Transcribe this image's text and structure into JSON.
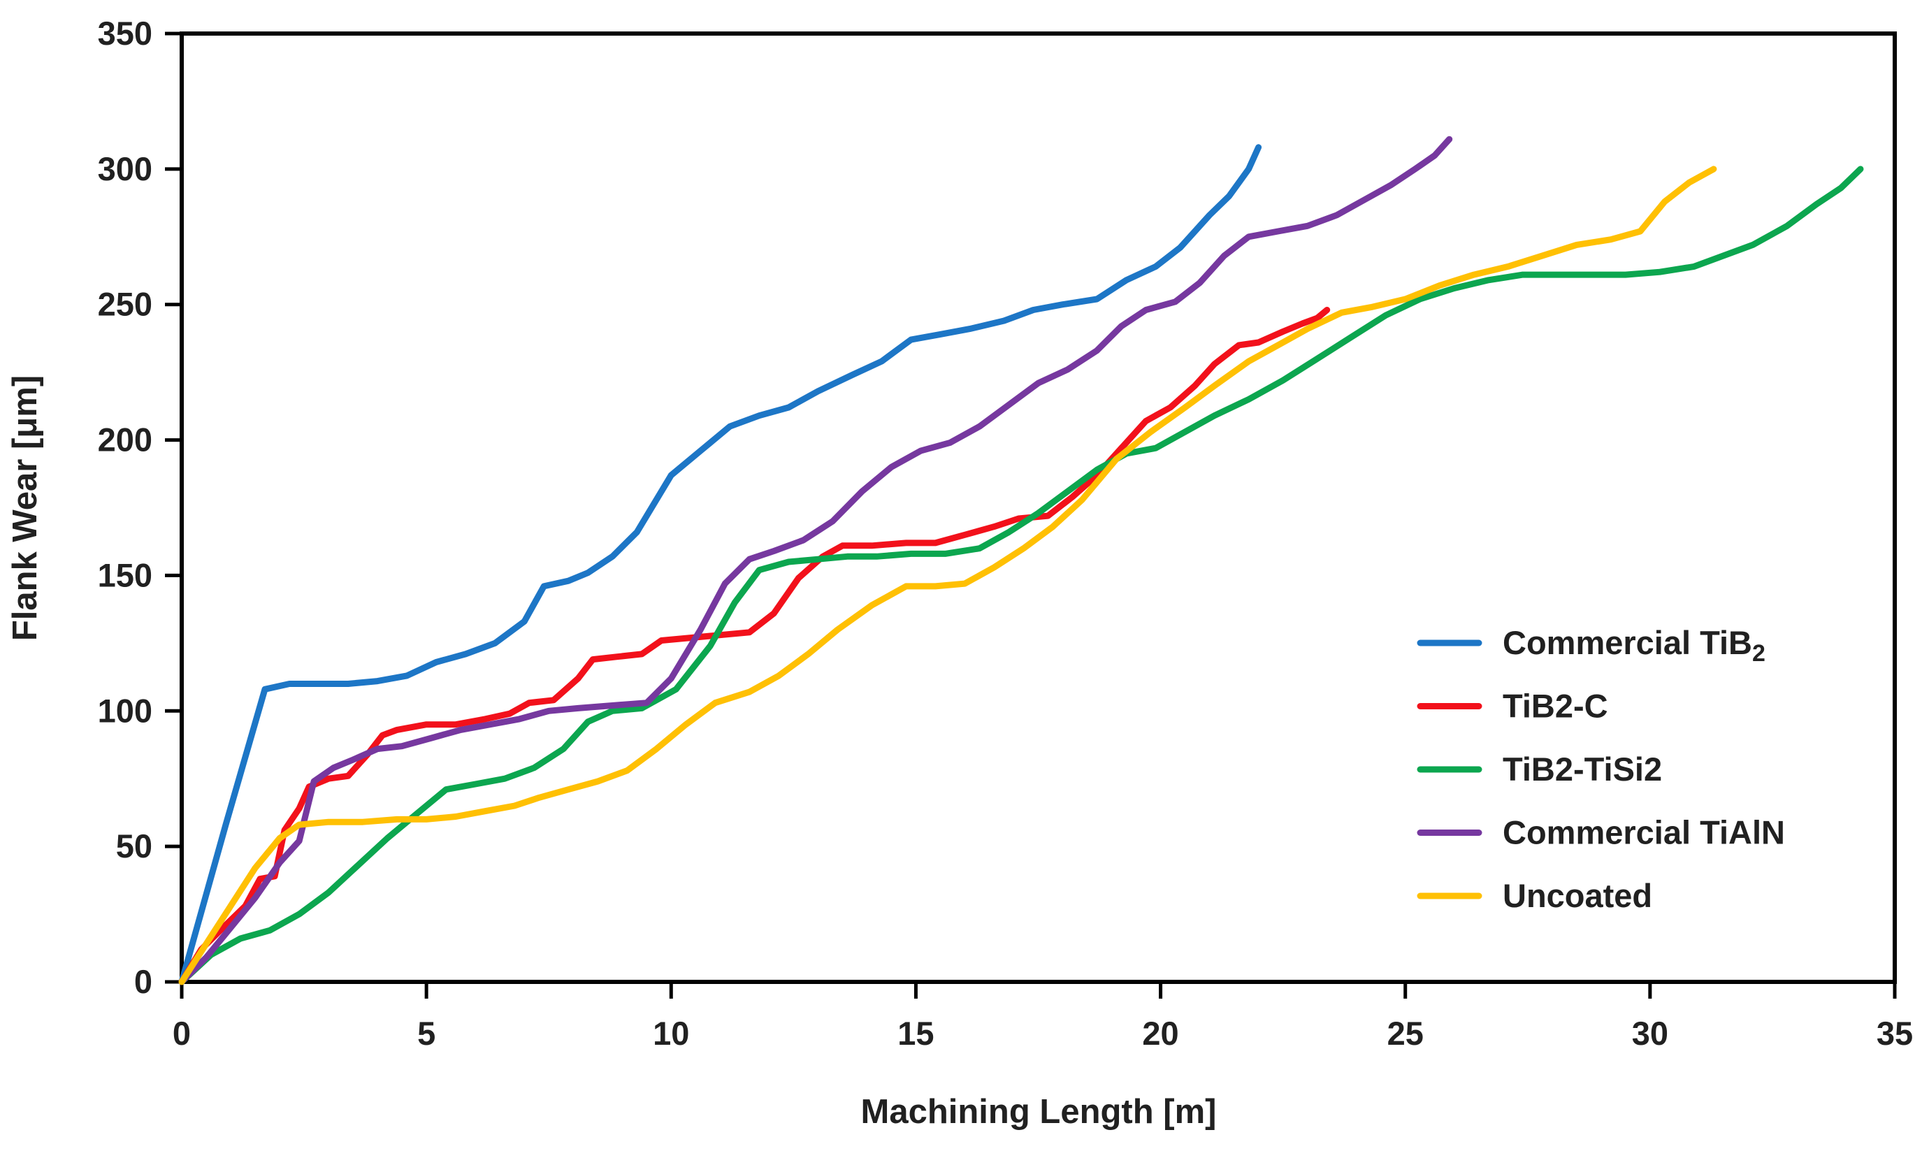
{
  "chart_data": {
    "type": "line",
    "title": "",
    "xlabel": "Machining Length [m]",
    "ylabel": "Flank Wear [μm]",
    "xlim": [
      0,
      35
    ],
    "ylim": [
      0,
      350
    ],
    "xticks": [
      0,
      5,
      10,
      15,
      20,
      25,
      30,
      35
    ],
    "yticks": [
      0,
      50,
      100,
      150,
      200,
      250,
      300,
      350
    ],
    "grid": false,
    "legend_position": "inside-right",
    "axis_color": "#000000",
    "text_color": "#212121",
    "series": [
      {
        "name": "Commercial TiB2",
        "label_main": "Commercial TiB",
        "label_sub": "2",
        "color": "#1d76c6",
        "x": [
          0,
          0.9,
          1.7,
          2.2,
          2.8,
          3.4,
          4.0,
          4.6,
          5.2,
          5.8,
          6.4,
          7.0,
          7.4,
          7.9,
          8.3,
          8.8,
          9.3,
          10.0,
          10.6,
          11.2,
          11.8,
          12.4,
          13.0,
          13.7,
          14.3,
          14.9,
          15.5,
          16.1,
          16.8,
          17.4,
          18.0,
          18.7,
          19.3,
          19.9,
          20.4,
          21.0,
          21.4,
          21.8,
          22.0
        ],
        "y": [
          0,
          58,
          108,
          110,
          110,
          110,
          111,
          113,
          118,
          121,
          125,
          133,
          146,
          148,
          151,
          157,
          166,
          187,
          196,
          205,
          209,
          212,
          218,
          224,
          229,
          237,
          239,
          241,
          244,
          248,
          250,
          252,
          259,
          264,
          271,
          283,
          290,
          300,
          308
        ]
      },
      {
        "name": "TiB2-C",
        "label_main": "TiB2-C",
        "label_sub": "",
        "color": "#f2111b",
        "x": [
          0,
          0.4,
          0.9,
          1.3,
          1.6,
          1.9,
          2.1,
          2.4,
          2.6,
          3.0,
          3.4,
          3.8,
          4.1,
          4.4,
          5.0,
          5.6,
          6.2,
          6.7,
          7.1,
          7.6,
          8.1,
          8.4,
          8.9,
          9.4,
          9.8,
          10.4,
          11.0,
          11.6,
          12.1,
          12.6,
          13.1,
          13.5,
          14.1,
          14.8,
          15.4,
          16.0,
          16.6,
          17.1,
          17.7,
          18.2,
          18.7,
          19.2,
          19.7,
          20.2,
          20.7,
          21.1,
          21.6,
          22.0,
          22.5,
          22.9,
          23.2,
          23.4
        ],
        "y": [
          0,
          12,
          21,
          28,
          38,
          39,
          56,
          64,
          72,
          75,
          76,
          84,
          91,
          93,
          95,
          95,
          97,
          99,
          103,
          104,
          112,
          119,
          120,
          121,
          126,
          127,
          128,
          129,
          136,
          149,
          157,
          161,
          161,
          162,
          162,
          165,
          168,
          171,
          172,
          179,
          187,
          197,
          207,
          212,
          220,
          228,
          235,
          236,
          240,
          243,
          245,
          248
        ]
      },
      {
        "name": "TiB2-TiSi2",
        "label_main": "TiB2-TiSi2",
        "label_sub": "",
        "color": "#0ca64f",
        "x": [
          0,
          0.6,
          1.2,
          1.8,
          2.4,
          3.0,
          3.6,
          4.2,
          4.8,
          5.4,
          6.0,
          6.6,
          7.2,
          7.8,
          8.3,
          8.8,
          9.4,
          10.1,
          10.8,
          11.3,
          11.8,
          12.4,
          13.0,
          13.6,
          14.2,
          14.9,
          15.6,
          16.3,
          16.9,
          17.5,
          18.1,
          18.7,
          19.3,
          19.9,
          20.5,
          21.1,
          21.8,
          22.5,
          23.2,
          23.9,
          24.6,
          25.3,
          26.0,
          26.7,
          27.4,
          28.1,
          28.8,
          29.5,
          30.2,
          30.9,
          31.5,
          32.1,
          32.8,
          33.4,
          33.9,
          34.3
        ],
        "y": [
          0,
          10,
          16,
          19,
          25,
          33,
          43,
          53,
          62,
          71,
          73,
          75,
          79,
          86,
          96,
          100,
          101,
          108,
          124,
          140,
          152,
          155,
          156,
          157,
          157,
          158,
          158,
          160,
          166,
          173,
          181,
          189,
          195,
          197,
          203,
          209,
          215,
          222,
          230,
          238,
          246,
          252,
          256,
          259,
          261,
          261,
          261,
          261,
          262,
          264,
          268,
          272,
          279,
          287,
          293,
          300
        ]
      },
      {
        "name": "Commercial TiAlN",
        "label_main": "Commercial TiAlN",
        "label_sub": "",
        "color": "#76389f",
        "x": [
          0,
          0.5,
          1.0,
          1.5,
          2.0,
          2.4,
          2.7,
          3.1,
          3.5,
          4.0,
          4.5,
          5.1,
          5.7,
          6.3,
          6.9,
          7.5,
          8.1,
          8.8,
          9.5,
          10.0,
          10.6,
          11.1,
          11.6,
          12.1,
          12.7,
          13.3,
          13.9,
          14.5,
          15.1,
          15.7,
          16.3,
          16.9,
          17.5,
          18.1,
          18.7,
          19.2,
          19.7,
          20.3,
          20.8,
          21.3,
          21.8,
          22.4,
          23.0,
          23.6,
          24.2,
          24.7,
          25.2,
          25.6,
          25.9
        ],
        "y": [
          0,
          9,
          20,
          31,
          44,
          52,
          74,
          79,
          82,
          86,
          87,
          90,
          93,
          95,
          97,
          100,
          101,
          102,
          103,
          112,
          130,
          147,
          156,
          159,
          163,
          170,
          181,
          190,
          196,
          199,
          205,
          213,
          221,
          226,
          233,
          242,
          248,
          251,
          258,
          268,
          275,
          277,
          279,
          283,
          289,
          294,
          300,
          305,
          311
        ]
      },
      {
        "name": "Uncoated",
        "label_main": "Uncoated",
        "label_sub": "",
        "color": "#ffc003",
        "x": [
          0,
          0.5,
          1.0,
          1.5,
          2.0,
          2.4,
          3.0,
          3.7,
          4.4,
          5.0,
          5.6,
          6.2,
          6.8,
          7.3,
          7.9,
          8.5,
          9.1,
          9.7,
          10.3,
          10.9,
          11.6,
          12.2,
          12.8,
          13.4,
          14.1,
          14.8,
          15.4,
          16.0,
          16.6,
          17.2,
          17.8,
          18.4,
          19.1,
          19.8,
          20.5,
          21.1,
          21.8,
          22.4,
          23.0,
          23.7,
          24.3,
          25.0,
          25.7,
          26.4,
          27.1,
          27.8,
          28.5,
          29.2,
          29.8,
          30.3,
          30.8,
          31.3
        ],
        "y": [
          0,
          14,
          28,
          42,
          53,
          58,
          59,
          59,
          60,
          60,
          61,
          63,
          65,
          68,
          71,
          74,
          78,
          86,
          95,
          103,
          107,
          113,
          121,
          130,
          139,
          146,
          146,
          147,
          153,
          160,
          168,
          178,
          193,
          203,
          212,
          220,
          229,
          235,
          241,
          247,
          249,
          252,
          257,
          261,
          264,
          268,
          272,
          274,
          277,
          288,
          295,
          300
        ]
      }
    ]
  }
}
